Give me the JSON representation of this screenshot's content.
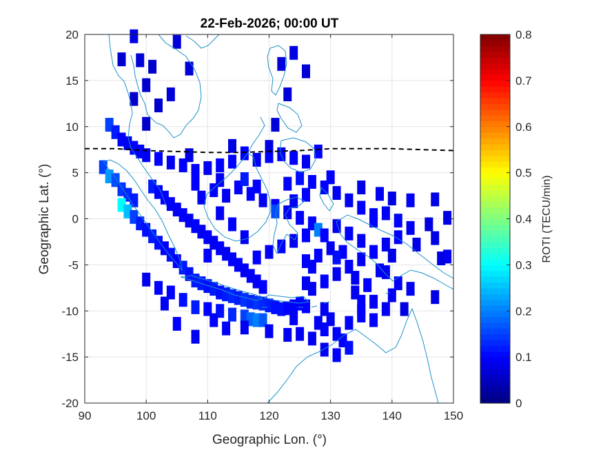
{
  "chart_data": {
    "type": "heatmap",
    "title": "22-Feb-2026; 00:00 UT",
    "xlabel": "Geographic Lon. (°)",
    "ylabel": "Geographic Lat. (°)",
    "xlim": [
      90,
      150
    ],
    "ylim": [
      -20,
      20
    ],
    "xticks": [
      "90",
      "100",
      "110",
      "120",
      "130",
      "140",
      "150"
    ],
    "yticks": [
      "20",
      "15",
      "10",
      "5",
      "0",
      "-5",
      "-10",
      "-15",
      "-20"
    ],
    "grid": true,
    "colorbar": {
      "label": "ROTI (TECU/min)",
      "range": [
        0,
        0.8
      ],
      "ticks": [
        "0",
        "0.1",
        "0.2",
        "0.3",
        "0.4",
        "0.5",
        "0.6",
        "0.7",
        "0.8"
      ],
      "colormap": "jet",
      "placement": "right"
    },
    "dip_equator": [
      [
        90,
        7.6
      ],
      [
        95,
        7.6
      ],
      [
        100,
        7.4
      ],
      [
        105,
        7.3
      ],
      [
        110,
        7.2
      ],
      [
        115,
        7.2
      ],
      [
        120,
        7.3
      ],
      [
        125,
        7.4
      ],
      [
        130,
        7.6
      ],
      [
        135,
        7.6
      ],
      [
        140,
        7.6
      ],
      [
        145,
        7.5
      ],
      [
        150,
        7.4
      ]
    ],
    "cells_note": "each cell: [lon, lat, ROTI]",
    "cells": [
      [
        98,
        19.8,
        0.08
      ],
      [
        105,
        19.2,
        0.07
      ],
      [
        96,
        17.3,
        0.06
      ],
      [
        99,
        17.2,
        0.07
      ],
      [
        101,
        16.5,
        0.06
      ],
      [
        107,
        16.3,
        0.07
      ],
      [
        122,
        16.8,
        0.07
      ],
      [
        124,
        18,
        0.08
      ],
      [
        126,
        16,
        0.07
      ],
      [
        100,
        14.5,
        0.06
      ],
      [
        104,
        13.5,
        0.07
      ],
      [
        98,
        13,
        0.06
      ],
      [
        102,
        12.3,
        0.06
      ],
      [
        123,
        13.5,
        0.07
      ],
      [
        100,
        10.3,
        0.06
      ],
      [
        121,
        10.2,
        0.07
      ],
      [
        94,
        10.2,
        0.15
      ],
      [
        95,
        9.4,
        0.12
      ],
      [
        96,
        8.6,
        0.1
      ],
      [
        97,
        8.2,
        0.09
      ],
      [
        98,
        7.7,
        0.1
      ],
      [
        99,
        7.3,
        0.1
      ],
      [
        100,
        6.9,
        0.09
      ],
      [
        102,
        6.5,
        0.1
      ],
      [
        104,
        6.1,
        0.09
      ],
      [
        106,
        5.8,
        0.1
      ],
      [
        108,
        5.2,
        0.1
      ],
      [
        110,
        5.5,
        0.09
      ],
      [
        112,
        5.8,
        0.1
      ],
      [
        114,
        6.2,
        0.1
      ],
      [
        116,
        7.1,
        0.1
      ],
      [
        118,
        6.4,
        0.09
      ],
      [
        120,
        6.8,
        0.1
      ],
      [
        122,
        7.0,
        0.09
      ],
      [
        124,
        6.6,
        0.1
      ],
      [
        126,
        6.2,
        0.09
      ],
      [
        128,
        7.3,
        0.1
      ],
      [
        107,
        6.9,
        0.08
      ],
      [
        114,
        7.9,
        0.08
      ],
      [
        120,
        7.8,
        0.08
      ],
      [
        93,
        5.6,
        0.15
      ],
      [
        94,
        4.6,
        0.22
      ],
      [
        95,
        4.2,
        0.16
      ],
      [
        96,
        3.2,
        0.14
      ],
      [
        97,
        2.6,
        0.13
      ],
      [
        98,
        2.0,
        0.12
      ],
      [
        96,
        1.5,
        0.3
      ],
      [
        97,
        0.8,
        0.25
      ],
      [
        98,
        0.2,
        0.15
      ],
      [
        99,
        -0.5,
        0.12
      ],
      [
        100,
        -1.2,
        0.11
      ],
      [
        101,
        -1.9,
        0.12
      ],
      [
        102,
        -2.6,
        0.11
      ],
      [
        103,
        -3.2,
        0.1
      ],
      [
        104,
        -3.9,
        0.11
      ],
      [
        105,
        -4.6,
        0.1
      ],
      [
        106,
        -5.3,
        0.12
      ],
      [
        107,
        -6.0,
        0.11
      ],
      [
        108,
        -6.7,
        0.12
      ],
      [
        109,
        -7.0,
        0.12
      ],
      [
        110,
        -7.3,
        0.11
      ],
      [
        111,
        -7.6,
        0.12
      ],
      [
        112,
        -8.0,
        0.11
      ],
      [
        113,
        -8.2,
        0.12
      ],
      [
        114,
        -8.4,
        0.13
      ],
      [
        115,
        -8.6,
        0.12
      ],
      [
        116,
        -8.8,
        0.14
      ],
      [
        117,
        -9.0,
        0.13
      ],
      [
        118,
        -9.1,
        0.14
      ],
      [
        119,
        -9.2,
        0.13
      ],
      [
        120,
        -9.4,
        0.12
      ],
      [
        121,
        -9.6,
        0.11
      ],
      [
        122,
        -9.8,
        0.11
      ],
      [
        123,
        -9.7,
        0.1
      ],
      [
        124,
        -9.5,
        0.1
      ],
      [
        125,
        -9.2,
        0.1
      ],
      [
        116,
        -10.6,
        0.15
      ],
      [
        117,
        -10.9,
        0.18
      ],
      [
        118,
        -11.0,
        0.2
      ],
      [
        119,
        -11.0,
        0.17
      ],
      [
        114,
        -10.4,
        0.13
      ],
      [
        112,
        -10.0,
        0.11
      ],
      [
        110,
        -9.8,
        0.1
      ],
      [
        108,
        -9.6,
        0.12
      ],
      [
        106,
        -8.8,
        0.11
      ],
      [
        104,
        -8.0,
        0.1
      ],
      [
        102,
        -7.5,
        0.1
      ],
      [
        100,
        -6.6,
        0.09
      ],
      [
        101,
        3.5,
        0.12
      ],
      [
        102,
        2.9,
        0.1
      ],
      [
        103,
        2.3,
        0.1
      ],
      [
        104,
        1.6,
        0.1
      ],
      [
        105,
        1.0,
        0.09
      ],
      [
        106,
        0.4,
        0.1
      ],
      [
        107,
        -0.2,
        0.09
      ],
      [
        108,
        -0.8,
        0.1
      ],
      [
        109,
        -1.4,
        0.09
      ],
      [
        110,
        -2.0,
        0.1
      ],
      [
        111,
        -2.6,
        0.09
      ],
      [
        112,
        -3.2,
        0.1
      ],
      [
        113,
        -3.8,
        0.09
      ],
      [
        114,
        -4.4,
        0.1
      ],
      [
        115,
        -5.0,
        0.1
      ],
      [
        116,
        -5.6,
        0.09
      ],
      [
        117,
        -6.2,
        0.1
      ],
      [
        118,
        -6.8,
        0.09
      ],
      [
        119,
        -7.4,
        0.1
      ],
      [
        109,
        2.3,
        0.09
      ],
      [
        111,
        3.1,
        0.1
      ],
      [
        113,
        2.5,
        0.09
      ],
      [
        115,
        3.4,
        0.1
      ],
      [
        117,
        2.7,
        0.1
      ],
      [
        119,
        2.0,
        0.09
      ],
      [
        121,
        1.4,
        0.1
      ],
      [
        123,
        0.7,
        0.09
      ],
      [
        125,
        0.1,
        0.1
      ],
      [
        127,
        -0.5,
        0.1
      ],
      [
        128,
        -1.2,
        0.2
      ],
      [
        126,
        -1.8,
        0.1
      ],
      [
        124,
        -2.4,
        0.09
      ],
      [
        122,
        -3.0,
        0.1
      ],
      [
        120,
        -3.6,
        0.09
      ],
      [
        118,
        -4.2,
        0.1
      ],
      [
        116,
        -2.0,
        0.09
      ],
      [
        114,
        -0.6,
        0.1
      ],
      [
        112,
        0.6,
        0.09
      ],
      [
        110,
        -4.0,
        0.1
      ],
      [
        108,
        3.8,
        0.1
      ],
      [
        112,
        4.2,
        0.09
      ],
      [
        116,
        4.3,
        0.12
      ],
      [
        118,
        3.5,
        0.1
      ],
      [
        121,
        0.8,
        0.16
      ],
      [
        123,
        3.8,
        0.1
      ],
      [
        125,
        4.4,
        0.11
      ],
      [
        127,
        4.0,
        0.1
      ],
      [
        129,
        3.4,
        0.1
      ],
      [
        131,
        2.8,
        0.09
      ],
      [
        133,
        2.0,
        0.09
      ],
      [
        135,
        1.2,
        0.1
      ],
      [
        137,
        0.4,
        0.09
      ],
      [
        130,
        4.5,
        0.1
      ],
      [
        126,
        2.6,
        0.1
      ],
      [
        124,
        1.9,
        0.09
      ],
      [
        129,
        -1.8,
        0.1
      ],
      [
        131,
        -0.8,
        0.09
      ],
      [
        133,
        -1.6,
        0.1
      ],
      [
        135,
        -2.4,
        0.09
      ],
      [
        137,
        -0.2,
        0.1
      ],
      [
        139,
        0.6,
        0.09
      ],
      [
        141,
        -0.2,
        0.1
      ],
      [
        143,
        -1.0,
        0.09
      ],
      [
        141,
        -2.0,
        0.1
      ],
      [
        139,
        -2.8,
        0.09
      ],
      [
        137,
        -3.6,
        0.1
      ],
      [
        135,
        -4.4,
        0.09
      ],
      [
        133,
        -5.2,
        0.1
      ],
      [
        131,
        -6.0,
        0.09
      ],
      [
        129,
        -6.8,
        0.1
      ],
      [
        127,
        -7.6,
        0.09
      ],
      [
        128,
        -4.0,
        0.1
      ],
      [
        130,
        -3.2,
        0.09
      ],
      [
        132,
        -3.6,
        0.1
      ],
      [
        134,
        -6.4,
        0.09
      ],
      [
        136,
        -7.2,
        0.1
      ],
      [
        138,
        -5.6,
        0.09
      ],
      [
        135,
        3.4,
        0.08
      ],
      [
        138,
        2.7,
        0.09
      ],
      [
        140,
        2.2,
        0.08
      ],
      [
        143,
        2.0,
        0.09
      ],
      [
        147,
        2.1,
        0.08
      ],
      [
        149,
        0.1,
        0.08
      ],
      [
        146,
        -0.6,
        0.08
      ],
      [
        147,
        -2.1,
        0.08
      ],
      [
        144,
        -2.8,
        0.08
      ],
      [
        149,
        -4.1,
        0.09
      ],
      [
        148,
        -4.3,
        0.08
      ],
      [
        140,
        -4.0,
        0.08
      ],
      [
        139,
        -5.8,
        0.09
      ],
      [
        141,
        -7.0,
        0.09
      ],
      [
        143,
        -7.6,
        0.09
      ],
      [
        140,
        -8.3,
        0.09
      ],
      [
        142,
        -9.8,
        0.08
      ],
      [
        147,
        -8.5,
        0.08
      ],
      [
        137,
        -9.0,
        0.09
      ],
      [
        135,
        -10.0,
        0.09
      ],
      [
        133,
        -11.3,
        0.1
      ],
      [
        130,
        -10.9,
        0.09
      ],
      [
        129,
        -12.0,
        0.1
      ],
      [
        131,
        -12.5,
        0.1
      ],
      [
        132,
        -13.2,
        0.1
      ],
      [
        133,
        -14.0,
        0.11
      ],
      [
        131,
        -14.8,
        0.1
      ],
      [
        129,
        -14.2,
        0.09
      ],
      [
        127,
        -13.0,
        0.09
      ],
      [
        128,
        -11.3,
        0.09
      ],
      [
        125,
        -12.5,
        0.09
      ],
      [
        124,
        -10.8,
        0.09
      ],
      [
        126,
        -9.5,
        0.1
      ],
      [
        120,
        -12.2,
        0.09
      ],
      [
        116,
        -11.8,
        0.09
      ],
      [
        113,
        -11.9,
        0.1
      ],
      [
        111,
        -11.0,
        0.1
      ],
      [
        108,
        -12.8,
        0.09
      ],
      [
        105,
        -11.4,
        0.1
      ],
      [
        103,
        -9.2,
        0.09
      ],
      [
        123,
        -12.6,
        0.09
      ],
      [
        135,
        -10.5,
        0.1
      ],
      [
        129,
        -9.8,
        0.09
      ],
      [
        126,
        -7.0,
        0.09
      ],
      [
        134,
        -8.0,
        0.09
      ],
      [
        127,
        -5.2,
        0.1
      ],
      [
        131,
        -4.2,
        0.11
      ],
      [
        135,
        -9.0,
        0.1
      ],
      [
        137,
        -11.0,
        0.1
      ],
      [
        139,
        -9.8,
        0.09
      ],
      [
        126,
        -4.6,
        0.1
      ]
    ]
  }
}
